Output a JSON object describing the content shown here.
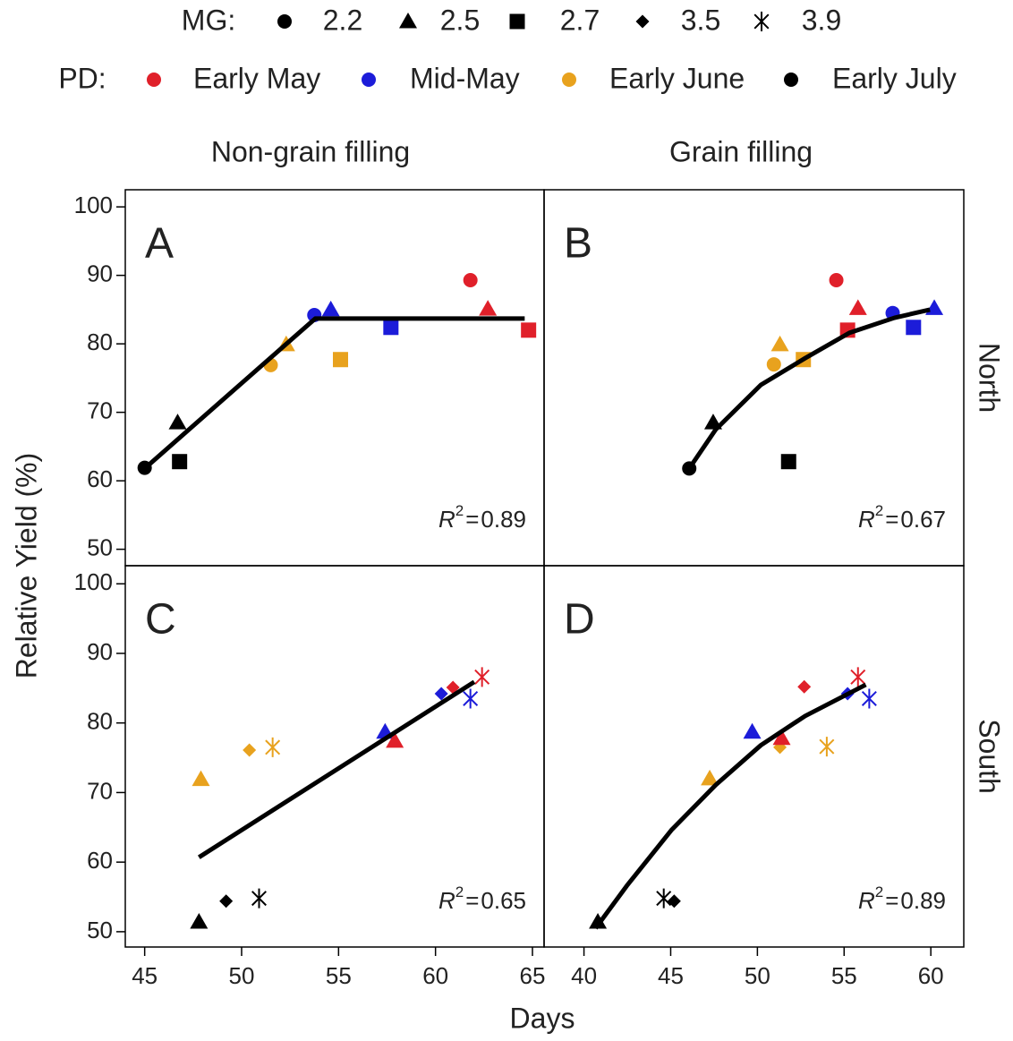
{
  "legend": {
    "mg": {
      "title": "MG:",
      "items": [
        {
          "label": "2.2",
          "marker": "circle"
        },
        {
          "label": "2.5",
          "marker": "triangle"
        },
        {
          "label": "2.7",
          "marker": "square"
        },
        {
          "label": "3.5",
          "marker": "diamond"
        },
        {
          "label": "3.9",
          "marker": "asterisk"
        }
      ]
    },
    "pd": {
      "title": "PD:",
      "items": [
        {
          "label": "Early May",
          "color": "#e0202a"
        },
        {
          "label": "Mid-May",
          "color": "#1c1cd9"
        },
        {
          "label": "Early June",
          "color": "#e8a21e"
        },
        {
          "label": "Early July",
          "color": "#000000"
        }
      ]
    }
  },
  "column_titles": [
    "Non-grain filling",
    "Grain filling"
  ],
  "row_titles": [
    "North",
    "South"
  ],
  "xlabel": "Days",
  "ylabel": "Relative Yield (%)",
  "chart_data": [
    {
      "type": "scatter",
      "label": "A",
      "xlim": [
        44,
        65.6
      ],
      "ylim": [
        47.6,
        102.5
      ],
      "yticks": [
        50,
        60,
        70,
        80,
        90,
        100
      ],
      "x": [
        45,
        46.7,
        46.8,
        51.5,
        52.3,
        55.1,
        53.75,
        54.6,
        57.7,
        61.8,
        62.7,
        64.8
      ],
      "y": [
        61.9,
        68.5,
        62.8,
        76.9,
        79.9,
        77.7,
        84.2,
        85.0,
        82.4,
        89.3,
        85.1,
        82.0
      ],
      "markers": [
        "circle",
        "triangle",
        "square",
        "circle",
        "triangle",
        "square",
        "circle",
        "triangle",
        "square",
        "circle",
        "triangle",
        "square"
      ],
      "colors": [
        "#000000",
        "#000000",
        "#000000",
        "#e8a21e",
        "#e8a21e",
        "#e8a21e",
        "#1c1cd9",
        "#1c1cd9",
        "#1c1cd9",
        "#e0202a",
        "#e0202a",
        "#e0202a"
      ],
      "fit": {
        "x": [
          45,
          53.8,
          64.6
        ],
        "y": [
          61.8,
          83.7,
          83.7
        ]
      },
      "annotation": {
        "symbol": "R",
        "power": "2",
        "sign": "=",
        "value": 0.89
      }
    },
    {
      "type": "scatter",
      "label": "B",
      "xlim": [
        37.7,
        61.9
      ],
      "ylim": [
        47.6,
        102.5
      ],
      "x": [
        46.07,
        47.45,
        51.8,
        50.95,
        51.3,
        52.65,
        57.8,
        60.2,
        59.0,
        54.55,
        55.8,
        55.2
      ],
      "y": [
        61.8,
        68.5,
        62.8,
        77.0,
        79.9,
        77.7,
        84.5,
        85.2,
        82.4,
        89.3,
        85.2,
        82.0
      ],
      "markers": [
        "circle",
        "triangle",
        "square",
        "circle",
        "triangle",
        "square",
        "circle",
        "triangle",
        "square",
        "circle",
        "triangle",
        "square"
      ],
      "colors": [
        "#000000",
        "#000000",
        "#000000",
        "#e8a21e",
        "#e8a21e",
        "#e8a21e",
        "#1c1cd9",
        "#1c1cd9",
        "#1c1cd9",
        "#e0202a",
        "#e0202a",
        "#e0202a"
      ],
      "fit": {
        "x": [
          46.07,
          47.6,
          50.2,
          52.75,
          55.3,
          57.9,
          59.95
        ],
        "y": [
          61.8,
          67.5,
          74.0,
          77.9,
          81.6,
          83.8,
          85.0
        ]
      },
      "annotation": {
        "symbol": "R",
        "power": "2",
        "sign": "=",
        "value": 0.67
      }
    },
    {
      "type": "scatter",
      "label": "C",
      "xlim": [
        44,
        65.6
      ],
      "ylim": [
        47.8,
        102.6
      ],
      "xticks": [
        45,
        50,
        55,
        60,
        65
      ],
      "yticks": [
        50,
        60,
        70,
        80,
        90,
        100
      ],
      "x": [
        47.9,
        50.4,
        51.6,
        47.8,
        49.2,
        50.9,
        57.4,
        57.9,
        60.3,
        60.9,
        62.4,
        61.8
      ],
      "y": [
        71.9,
        76.1,
        76.5,
        51.4,
        54.4,
        54.8,
        78.7,
        77.4,
        84.2,
        85.1,
        86.6,
        83.5
      ],
      "markers": [
        "triangle",
        "diamond",
        "asterisk",
        "triangle",
        "diamond",
        "asterisk",
        "triangle",
        "triangle",
        "diamond",
        "diamond",
        "asterisk",
        "asterisk"
      ],
      "colors": [
        "#e8a21e",
        "#e8a21e",
        "#e8a21e",
        "#000000",
        "#000000",
        "#000000",
        "#1c1cd9",
        "#e0202a",
        "#1c1cd9",
        "#e0202a",
        "#e0202a",
        "#1c1cd9"
      ],
      "fit": {
        "x": [
          47.8,
          62.0
        ],
        "y": [
          60.7,
          85.9
        ]
      },
      "annotation": {
        "symbol": "R",
        "power": "2",
        "sign": "=",
        "value": 0.65
      }
    },
    {
      "type": "scatter",
      "label": "D",
      "xlim": [
        37.7,
        61.9
      ],
      "ylim": [
        47.8,
        102.6
      ],
      "xticks": [
        40,
        45,
        50,
        55,
        60
      ],
      "x": [
        40.8,
        44.6,
        45.2,
        47.25,
        51.3,
        54.0,
        49.7,
        51.4,
        52.7,
        55.2,
        55.8,
        56.45
      ],
      "y": [
        51.4,
        54.8,
        54.4,
        72.0,
        76.5,
        76.6,
        78.7,
        77.8,
        85.2,
        84.2,
        86.6,
        83.5
      ],
      "markers": [
        "triangle",
        "asterisk",
        "diamond",
        "triangle",
        "diamond",
        "asterisk",
        "triangle",
        "triangle",
        "diamond",
        "diamond",
        "asterisk",
        "asterisk"
      ],
      "colors": [
        "#000000",
        "#000000",
        "#000000",
        "#e8a21e",
        "#e8a21e",
        "#e8a21e",
        "#1c1cd9",
        "#e0202a",
        "#e0202a",
        "#1c1cd9",
        "#e0202a",
        "#1c1cd9"
      ],
      "fit": {
        "x": [
          40.67,
          42.47,
          45.04,
          47.6,
          50.2,
          52.75,
          56.25
        ],
        "y": [
          50.5,
          56.6,
          64.6,
          71.1,
          76.8,
          81.0,
          85.5
        ]
      },
      "annotation": {
        "symbol": "R",
        "power": "2",
        "sign": "=",
        "value": 0.89
      }
    }
  ]
}
